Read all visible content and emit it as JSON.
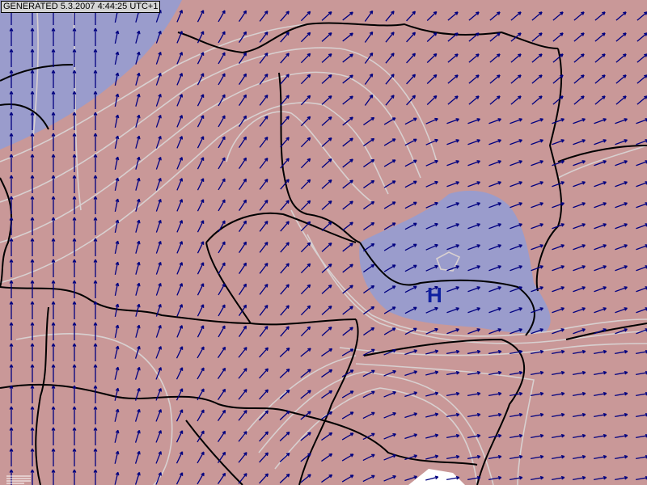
{
  "header": {
    "generated_label": "GENERATED 5.3.2007 4:44:25 UTC+1"
  },
  "pressure_centers": [
    {
      "label": "H"
    }
  ],
  "colors": {
    "background_region": "#c99898",
    "high_pressure_region": "#9a9ccc",
    "isolines": "#d8d0d0",
    "borders": "#000000",
    "wind_arrows": "#000080"
  },
  "icons": {
    "wind": "wind-arrow-icon",
    "legend": "legend-icon"
  }
}
